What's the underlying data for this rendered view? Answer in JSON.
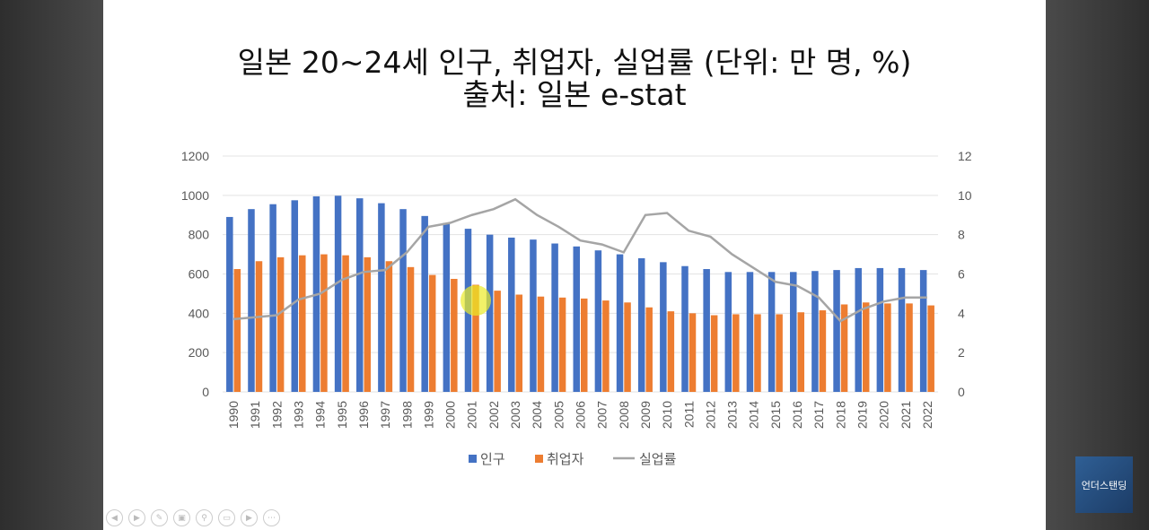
{
  "title_line1": "일본 20~24세 인구, 취업자, 실업률 (단위: 만 명, %)",
  "title_line2": "출처: 일본 e-stat",
  "logo_text": "언더스탠딩",
  "chart_data": {
    "type": "bar+line",
    "title": "일본 20~24세 인구, 취업자, 실업률 (단위: 만 명, %)",
    "subtitle": "출처: 일본 e-stat",
    "categories": [
      "1990",
      "1991",
      "1992",
      "1993",
      "1994",
      "1995",
      "1996",
      "1997",
      "1998",
      "1999",
      "2000",
      "2001",
      "2002",
      "2003",
      "2004",
      "2005",
      "2006",
      "2007",
      "2008",
      "2009",
      "2010",
      "2011",
      "2012",
      "2013",
      "2014",
      "2015",
      "2016",
      "2017",
      "2018",
      "2019",
      "2020",
      "2021",
      "2022"
    ],
    "series": [
      {
        "name": "인구",
        "type": "bar",
        "axis": "left",
        "color": "#4472c4",
        "values": [
          890,
          930,
          955,
          975,
          995,
          998,
          985,
          960,
          930,
          895,
          860,
          830,
          800,
          785,
          775,
          755,
          740,
          720,
          700,
          680,
          660,
          640,
          625,
          610,
          610,
          610,
          610,
          615,
          620,
          630,
          630,
          630,
          620
        ]
      },
      {
        "name": "취업자",
        "type": "bar",
        "axis": "left",
        "color": "#ed7d31",
        "values": [
          625,
          665,
          685,
          695,
          700,
          695,
          685,
          665,
          635,
          595,
          575,
          545,
          515,
          495,
          485,
          480,
          475,
          465,
          455,
          430,
          410,
          400,
          390,
          395,
          395,
          395,
          405,
          415,
          445,
          455,
          450,
          450,
          440
        ]
      },
      {
        "name": "실업률",
        "type": "line",
        "axis": "right",
        "color": "#a5a5a5",
        "values": [
          3.7,
          3.8,
          3.9,
          4.7,
          5.0,
          5.7,
          6.1,
          6.2,
          7.1,
          8.4,
          8.6,
          9.0,
          9.3,
          9.8,
          9.0,
          8.4,
          7.7,
          7.5,
          7.1,
          9.0,
          9.1,
          8.2,
          7.9,
          7.0,
          6.3,
          5.6,
          5.4,
          4.8,
          3.6,
          4.2,
          4.6,
          4.8,
          4.8
        ]
      }
    ],
    "ylim_left": [
      0,
      1200
    ],
    "yticks_left": [
      "0",
      "200",
      "400",
      "600",
      "800",
      "1000",
      "1200"
    ],
    "ylim_right": [
      0,
      12
    ],
    "yticks_right": [
      "0",
      "2",
      "4",
      "6",
      "8",
      "10",
      "12"
    ],
    "grid": true,
    "legend": "bottom"
  }
}
